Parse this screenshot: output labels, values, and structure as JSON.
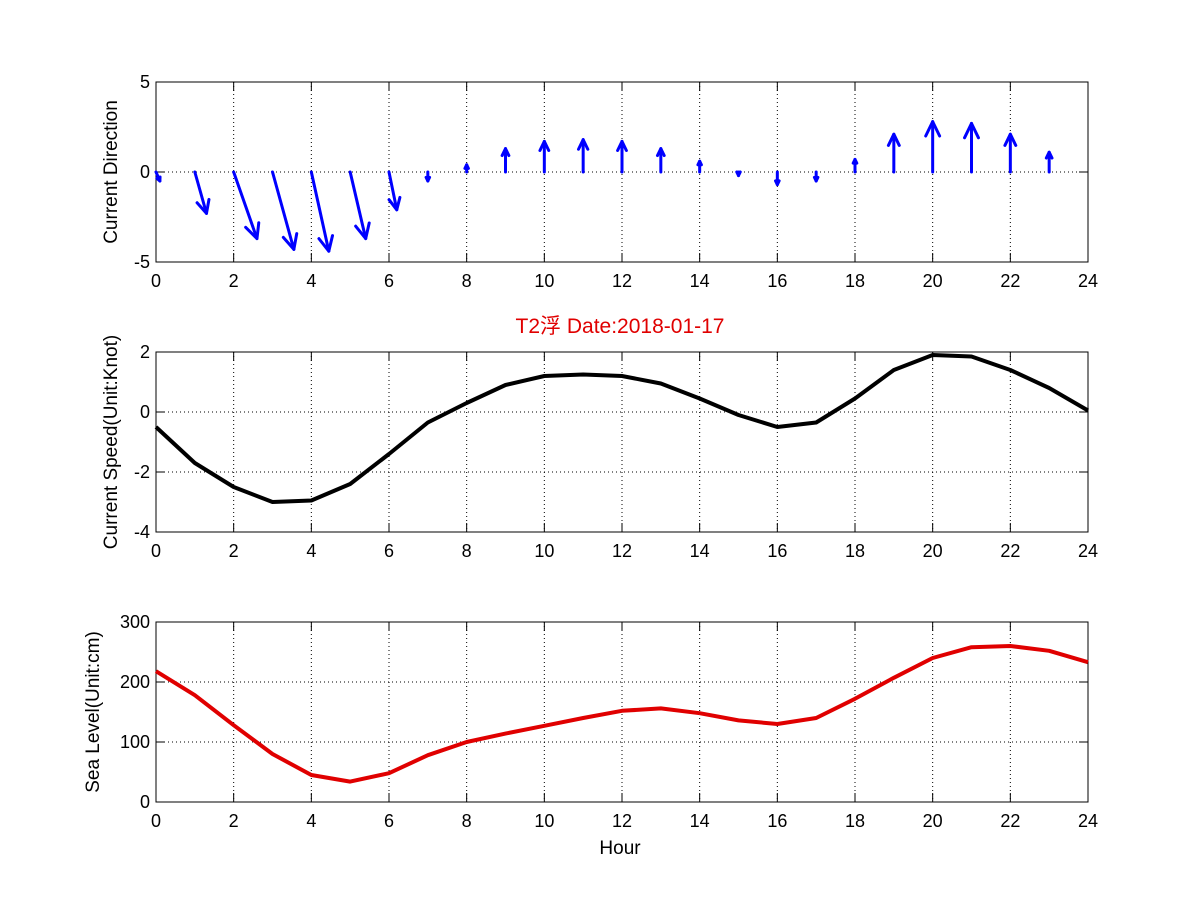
{
  "title": "T2浮    Date:2018-01-17",
  "chart_data": [
    {
      "type": "quiver",
      "ylabel": "Current Direction",
      "xlim": [
        0,
        24
      ],
      "ylim": [
        -5,
        5
      ],
      "xticks": [
        "0",
        "2",
        "4",
        "6",
        "8",
        "10",
        "12",
        "14",
        "16",
        "18",
        "20",
        "22",
        "24"
      ],
      "yticks": [
        "-5",
        "0",
        "5"
      ],
      "grid": true,
      "color": "#0000ff",
      "hours": [
        0,
        1,
        2,
        3,
        4,
        5,
        6,
        7,
        8,
        9,
        10,
        11,
        12,
        13,
        14,
        15,
        16,
        17,
        18,
        19,
        20,
        21,
        22,
        23
      ],
      "u": [
        0.1,
        0.3,
        0.6,
        0.55,
        0.45,
        0.4,
        0.2,
        0.0,
        0.0,
        0.0,
        0.0,
        0.0,
        0.0,
        0.0,
        0.0,
        0.0,
        0.0,
        0.0,
        0.0,
        0.0,
        0.0,
        0.0,
        0.0,
        0.0
      ],
      "v": [
        -0.5,
        -2.3,
        -3.7,
        -4.3,
        -4.4,
        -3.7,
        -2.1,
        -0.5,
        0.4,
        1.3,
        1.7,
        1.8,
        1.7,
        1.3,
        0.6,
        -0.2,
        -0.7,
        -0.5,
        0.7,
        2.1,
        2.8,
        2.7,
        2.1,
        1.1
      ]
    },
    {
      "type": "line",
      "ylabel": "Current Speed(Unit:Knot)",
      "xlim": [
        0,
        24
      ],
      "ylim": [
        -4,
        2
      ],
      "xticks": [
        "0",
        "2",
        "4",
        "6",
        "8",
        "10",
        "12",
        "14",
        "16",
        "18",
        "20",
        "22",
        "24"
      ],
      "yticks": [
        "-4",
        "-2",
        "0",
        "2"
      ],
      "grid": true,
      "color": "#000000",
      "x": [
        0,
        1,
        2,
        3,
        4,
        5,
        6,
        7,
        8,
        9,
        10,
        11,
        12,
        13,
        14,
        15,
        16,
        17,
        18,
        19,
        20,
        21,
        22,
        23,
        24
      ],
      "y": [
        -0.5,
        -1.7,
        -2.5,
        -3.0,
        -2.95,
        -2.4,
        -1.4,
        -0.35,
        0.3,
        0.9,
        1.2,
        1.25,
        1.2,
        0.95,
        0.45,
        -0.1,
        -0.5,
        -0.35,
        0.45,
        1.4,
        1.9,
        1.85,
        1.4,
        0.8,
        0.05
      ]
    },
    {
      "type": "line",
      "ylabel": "Sea Level(Unit:cm)",
      "xlabel": "Hour",
      "xlim": [
        0,
        24
      ],
      "ylim": [
        0,
        300
      ],
      "xticks": [
        "0",
        "2",
        "4",
        "6",
        "8",
        "10",
        "12",
        "14",
        "16",
        "18",
        "20",
        "22",
        "24"
      ],
      "yticks": [
        "0",
        "100",
        "200",
        "300"
      ],
      "grid": true,
      "color": "#e00000",
      "x": [
        0,
        1,
        2,
        3,
        4,
        5,
        6,
        7,
        8,
        9,
        10,
        11,
        12,
        13,
        14,
        15,
        16,
        17,
        18,
        19,
        20,
        21,
        22,
        23,
        24
      ],
      "y": [
        218,
        178,
        128,
        80,
        45,
        34,
        48,
        78,
        100,
        114,
        127,
        140,
        152,
        156,
        148,
        136,
        130,
        140,
        172,
        207,
        240,
        258,
        260,
        252,
        233
      ]
    }
  ]
}
